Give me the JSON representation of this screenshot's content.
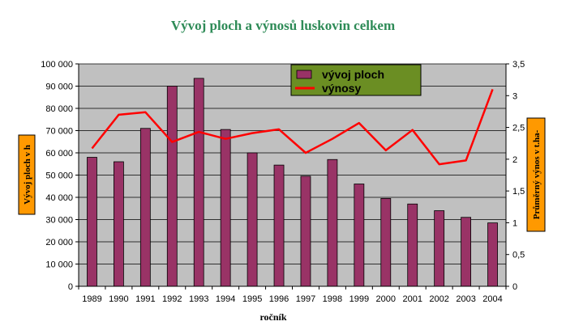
{
  "chart_data": {
    "type": "bar",
    "title": "Vývoj ploch a výnosů luskovin celkem",
    "xlabel": "ročník",
    "ylabel_left": "Vývoj ploch v h",
    "ylabel_right": "Průměrný výnos v t.ha-",
    "categories": [
      "1989",
      "1990",
      "1991",
      "1992",
      "1993",
      "1994",
      "1995",
      "1996",
      "1997",
      "1998",
      "1999",
      "2000",
      "2001",
      "2002",
      "2003",
      "2004"
    ],
    "series": [
      {
        "name": "vývoj ploch",
        "type": "bar",
        "axis": "left",
        "color": "#993366",
        "values": [
          58000,
          56000,
          71000,
          90000,
          93500,
          70500,
          60000,
          54500,
          49500,
          57000,
          46000,
          39500,
          37000,
          34000,
          31000,
          28500
        ]
      },
      {
        "name": "výnosy",
        "type": "line",
        "axis": "right",
        "color": "#ff0000",
        "values": [
          2.17,
          2.7,
          2.74,
          2.27,
          2.43,
          2.32,
          2.41,
          2.47,
          2.1,
          2.32,
          2.57,
          2.14,
          2.46,
          1.92,
          1.98,
          3.1
        ]
      }
    ],
    "ylim_left": [
      0,
      100000
    ],
    "ylim_right": [
      0,
      3.5
    ],
    "yticks_left": [
      "0",
      "10 000",
      "20 000",
      "30 000",
      "40 000",
      "50 000",
      "60 000",
      "70 000",
      "80 000",
      "90 000",
      "100 000"
    ],
    "yticks_right": [
      "0",
      "0,5",
      "1",
      "1,5",
      "2",
      "2,5",
      "3",
      "3,5"
    ],
    "grid": true,
    "legend_position": "top-center",
    "colors": {
      "plot_bg": "#c0c0c0",
      "legend_bg": "#6b8e23",
      "label_box_bg": "#ff9900",
      "title": "#2e8b57"
    }
  }
}
